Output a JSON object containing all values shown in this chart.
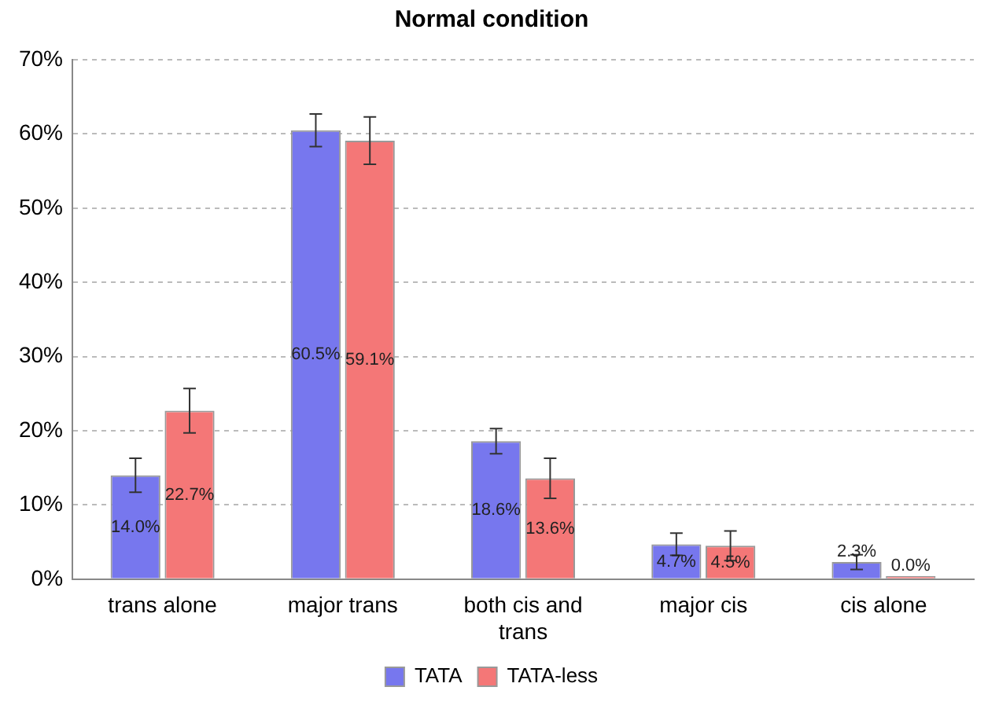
{
  "chart_data": {
    "type": "bar",
    "title": "Normal condition",
    "categories": [
      "trans alone",
      "major trans",
      "both cis and trans",
      "major cis",
      "cis alone"
    ],
    "series": [
      {
        "name": "TATA",
        "color": "#7777ee",
        "values": [
          14.0,
          60.5,
          18.6,
          4.7,
          2.3
        ],
        "errors": [
          2.3,
          2.2,
          1.7,
          1.5,
          1.0
        ],
        "value_labels": [
          "14.0%",
          "60.5%",
          "18.6%",
          "4.7%",
          "2.3%"
        ]
      },
      {
        "name": "TATA-less",
        "color": "#f47777",
        "values": [
          22.7,
          59.1,
          13.6,
          4.5,
          0.0
        ],
        "errors": [
          3.0,
          3.2,
          2.7,
          2.0,
          null
        ],
        "value_labels": [
          "22.7%",
          "59.1%",
          "13.6%",
          "4.5%",
          "0.0%"
        ]
      }
    ],
    "ylim": [
      0,
      70
    ],
    "yticks": [
      {
        "value": 0,
        "label": "0%"
      },
      {
        "value": 10,
        "label": "10%"
      },
      {
        "value": 20,
        "label": "20%"
      },
      {
        "value": 30,
        "label": "30%"
      },
      {
        "value": 40,
        "label": "40%"
      },
      {
        "value": 50,
        "label": "50%"
      },
      {
        "value": 60,
        "label": "60%"
      },
      {
        "value": 70,
        "label": "70%"
      }
    ],
    "grid": "y",
    "legend": "bottom"
  }
}
